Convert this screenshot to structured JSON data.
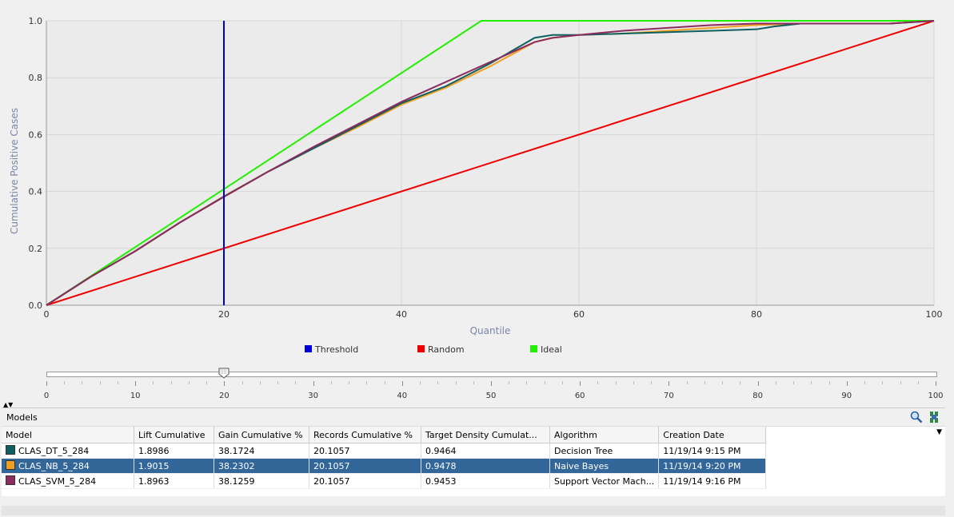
{
  "chart_data": {
    "type": "line",
    "xlabel": "Quantile",
    "ylabel": "Cumulative Positive Cases",
    "xlim": [
      0,
      100
    ],
    "ylim": [
      0,
      1.0
    ],
    "xticks": [
      0,
      20,
      40,
      60,
      80,
      100
    ],
    "yticks": [
      "0.0",
      "0.2",
      "0.4",
      "0.6",
      "0.8",
      "1.0"
    ],
    "grid": true,
    "legend_position": "bottom",
    "series": [
      {
        "name": "Threshold",
        "color": "#0000dd",
        "x": [
          20,
          20
        ],
        "y": [
          0,
          1.0
        ]
      },
      {
        "name": "Random",
        "color": "#ee0000",
        "x": [
          0,
          100
        ],
        "y": [
          0,
          1.0
        ]
      },
      {
        "name": "Ideal",
        "color": "#22ee00",
        "x": [
          0,
          49,
          100
        ],
        "y": [
          0,
          1.0,
          1.0
        ]
      },
      {
        "name": "CLAS_DT_5_284",
        "color": "#0e6060",
        "x": [
          0,
          5,
          10,
          15,
          20,
          25,
          30,
          35,
          40,
          45,
          50,
          55,
          57,
          60,
          65,
          70,
          75,
          80,
          82,
          85,
          90,
          95,
          100
        ],
        "y": [
          0,
          0.1,
          0.19,
          0.29,
          0.382,
          0.47,
          0.55,
          0.63,
          0.71,
          0.77,
          0.85,
          0.94,
          0.95,
          0.95,
          0.955,
          0.96,
          0.965,
          0.97,
          0.98,
          0.99,
          0.99,
          0.99,
          1.0
        ]
      },
      {
        "name": "CLAS_NB_5_284",
        "color": "#f0a020",
        "x": [
          0,
          5,
          10,
          15,
          20,
          25,
          30,
          35,
          40,
          45,
          50,
          55,
          57,
          60,
          65,
          70,
          75,
          80,
          85,
          90,
          95,
          100
        ],
        "y": [
          0,
          0.1,
          0.19,
          0.29,
          0.383,
          0.47,
          0.55,
          0.625,
          0.705,
          0.765,
          0.84,
          0.925,
          0.94,
          0.95,
          0.955,
          0.965,
          0.975,
          0.985,
          0.99,
          0.99,
          0.99,
          1.0
        ]
      },
      {
        "name": "CLAS_SVM_5_284",
        "color": "#8b2b5e",
        "x": [
          0,
          5,
          10,
          15,
          20,
          25,
          30,
          35,
          40,
          45,
          50,
          55,
          57,
          60,
          65,
          70,
          75,
          80,
          85,
          90,
          95,
          100
        ],
        "y": [
          0,
          0.1,
          0.19,
          0.29,
          0.381,
          0.47,
          0.555,
          0.635,
          0.715,
          0.785,
          0.855,
          0.925,
          0.94,
          0.95,
          0.965,
          0.975,
          0.985,
          0.99,
          0.99,
          0.99,
          0.99,
          1.0
        ]
      }
    ],
    "legend": [
      {
        "label": "Threshold",
        "color": "#0000dd"
      },
      {
        "label": "Random",
        "color": "#ee0000"
      },
      {
        "label": "Ideal",
        "color": "#22ee00"
      }
    ]
  },
  "slider": {
    "labels": [
      "0",
      "10",
      "20",
      "30",
      "40",
      "50",
      "60",
      "70",
      "80",
      "90",
      "100"
    ],
    "value": 20,
    "min": 0,
    "max": 100
  },
  "models": {
    "title": "Models",
    "columns": [
      "Model",
      "Lift Cumulative",
      "Gain Cumulative %",
      "Records Cumulative %",
      "Target Density Cumulat...",
      "Algorithm",
      "Creation Date"
    ],
    "rows": [
      {
        "color": "#0e6060",
        "model": "CLAS_DT_5_284",
        "lift": "1.8986",
        "gain": "38.1724",
        "records": "20.1057",
        "density": "0.9464",
        "algorithm": "Decision Tree",
        "date": "11/19/14 9:15 PM",
        "selected": false
      },
      {
        "color": "#f0a020",
        "model": "CLAS_NB_5_284",
        "lift": "1.9015",
        "gain": "38.2302",
        "records": "20.1057",
        "density": "0.9478",
        "algorithm": "Naive Bayes",
        "date": "11/19/14 9:20 PM",
        "selected": true
      },
      {
        "color": "#8b2b5e",
        "model": "CLAS_SVM_5_284",
        "lift": "1.8963",
        "gain": "38.1259",
        "records": "20.1057",
        "density": "0.9453",
        "algorithm": "Support Vector Mach...",
        "date": "11/19/14 9:16 PM",
        "selected": false
      }
    ]
  },
  "icons": {
    "search": "magnifier-icon",
    "refresh": "refresh-icon"
  }
}
